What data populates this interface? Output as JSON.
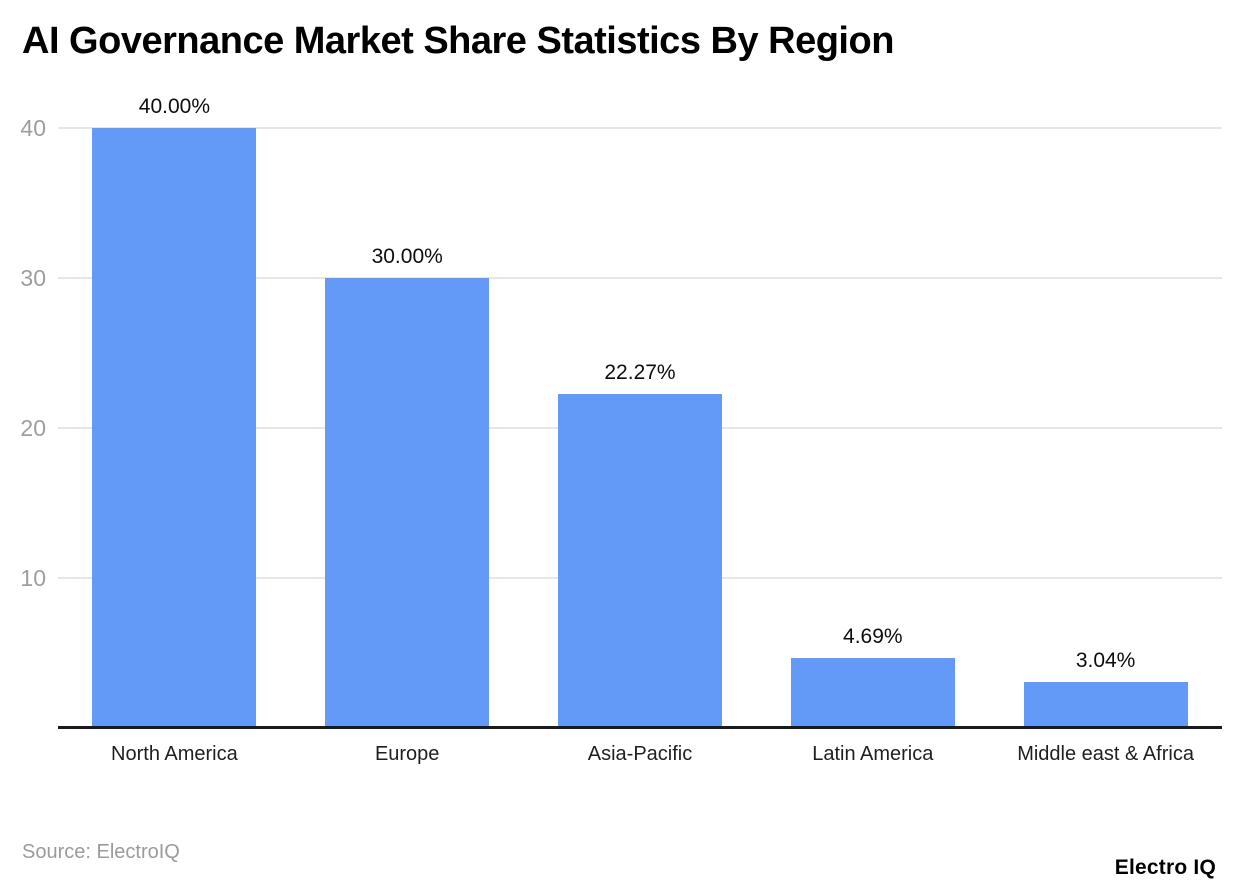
{
  "header": {
    "title": "AI Governance Market Share Statistics By Region"
  },
  "chart_data": {
    "type": "bar",
    "title": "AI Governance Market Share Statistics By Region",
    "categories": [
      "North America",
      "Europe",
      "Asia-Pacific",
      "Latin America",
      "Middle east & Africa"
    ],
    "values": [
      40.0,
      30.0,
      22.27,
      4.69,
      3.04
    ],
    "bar_labels": [
      "40.00%",
      "30.00%",
      "22.27%",
      "4.69%",
      "3.04%"
    ],
    "xlabel": "",
    "ylabel": "",
    "ylim": [
      0,
      40
    ],
    "yticks": [
      10,
      20,
      30,
      40
    ],
    "grid": "horizontal-on",
    "legend": "none",
    "bar_color": "#639af7"
  },
  "colors": {
    "bar": "#639af7",
    "gridline": "#e6e6e6",
    "axis_line": "#1a1a1a",
    "tick_label": "#9e9e9e",
    "category_label": "#1f1f1f",
    "value_label": "#0d0d0d"
  },
  "footer": {
    "source": "Source: ElectroIQ",
    "logo": "Electro IQ"
  }
}
